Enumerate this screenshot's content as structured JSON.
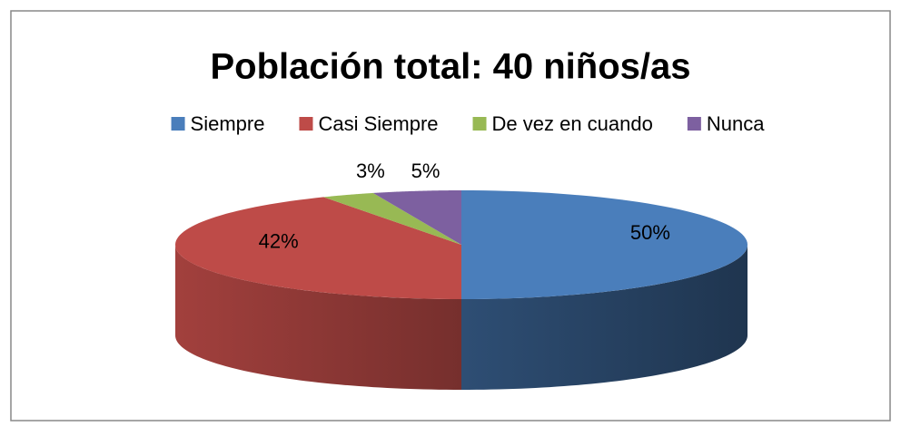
{
  "chart_data": {
    "type": "pie",
    "title": "Población total: 40 niños/as",
    "categories": [
      "Siempre",
      "Casi Siempre",
      "De vez en cuando",
      "Nunca"
    ],
    "values": [
      50,
      42,
      3,
      5
    ],
    "value_labels": [
      "50%",
      "42%",
      "3%",
      "5%"
    ],
    "colors": [
      "#4a7ebb",
      "#be4b48",
      "#98b954",
      "#7d60a0"
    ],
    "legend": "top"
  }
}
